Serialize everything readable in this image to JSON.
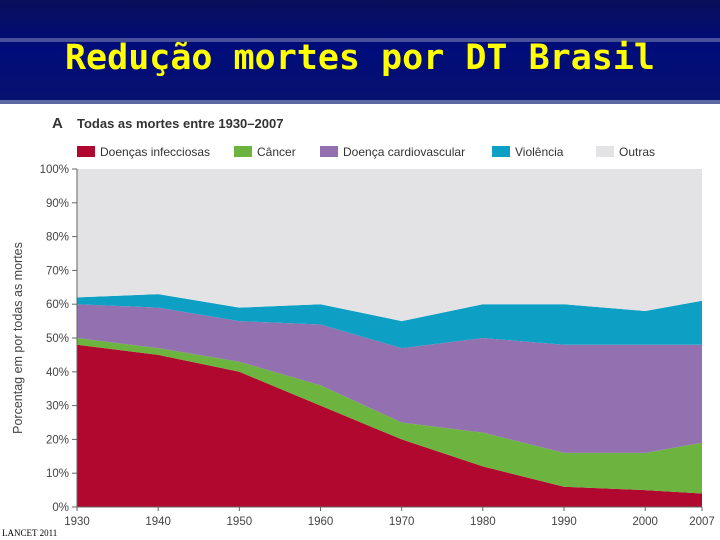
{
  "slide": {
    "title": "Redução mortes por DT Brasil",
    "source": "LANCET 2011"
  },
  "colors": {
    "banner": "#000c7a",
    "title": "#ffff00"
  },
  "chart_data": {
    "type": "area",
    "stacked": true,
    "panel_letter": "A",
    "title": "Todas as mortes entre 1930–2007",
    "ylabel": "Porcentag em por todas as mortes",
    "xlabel": "",
    "ylim": [
      0,
      100
    ],
    "yticks": [
      "0%",
      "10%",
      "20%",
      "30%",
      "40%",
      "50%",
      "60%",
      "70%",
      "80%",
      "90%",
      "100%"
    ],
    "x": [
      1930,
      1940,
      1950,
      1960,
      1970,
      1980,
      1990,
      2000,
      2007
    ],
    "xticks": [
      "1930",
      "1940",
      "1950",
      "1960",
      "1970",
      "1980",
      "1990",
      "2000",
      "2007"
    ],
    "legend_position": "top",
    "series": [
      {
        "name": "Doenças infecciosas",
        "color": "#b0082e",
        "values": [
          48,
          45,
          40,
          30,
          20,
          12,
          6,
          5,
          4
        ]
      },
      {
        "name": "Câncer",
        "color": "#6db33f",
        "values": [
          2,
          2,
          3,
          6,
          5,
          10,
          10,
          11,
          15
        ]
      },
      {
        "name": "Doença cardiovascular",
        "color": "#9370b0",
        "values": [
          10,
          12,
          12,
          18,
          22,
          28,
          32,
          32,
          29
        ]
      },
      {
        "name": "Violência",
        "color": "#0d9fc4",
        "values": [
          2,
          4,
          4,
          6,
          8,
          10,
          12,
          10,
          13
        ]
      },
      {
        "name": "Outras",
        "color": "#e3e3e6",
        "values": [
          38,
          37,
          41,
          40,
          45,
          40,
          40,
          42,
          39
        ]
      }
    ]
  }
}
